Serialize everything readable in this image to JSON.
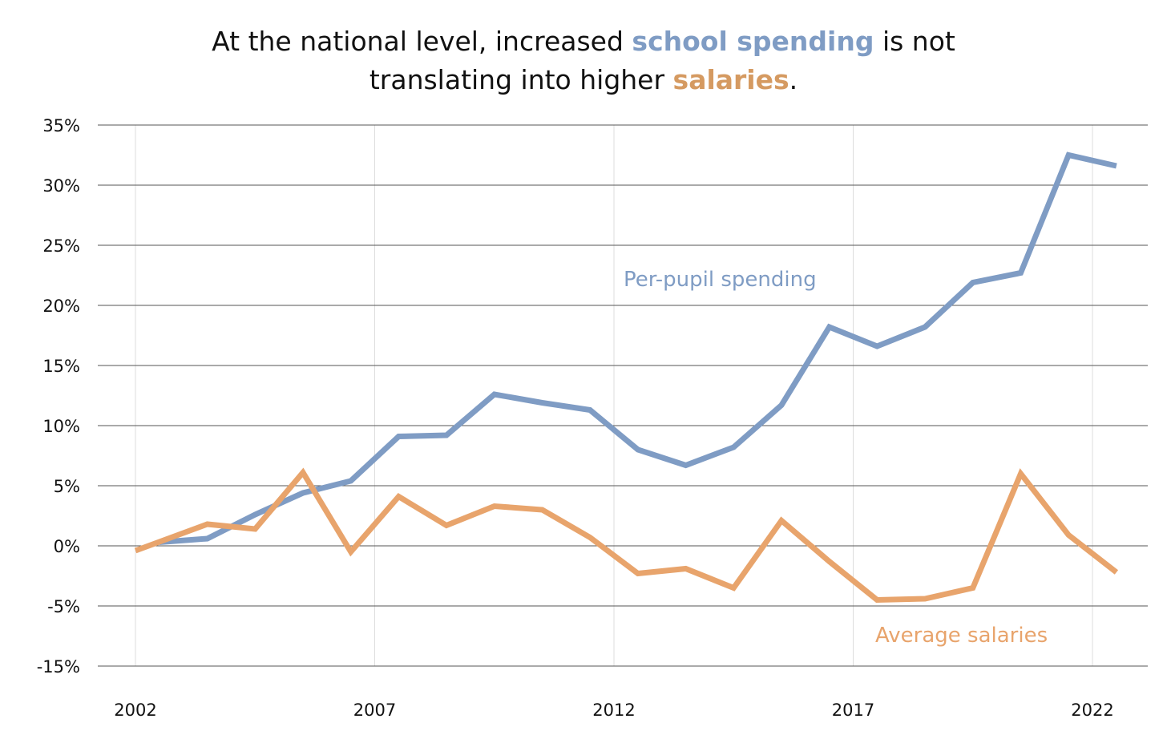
{
  "title": {
    "part1": "At the national level, increased ",
    "highlight1": "school spending",
    "part2": " is not",
    "part3": "translating into higher ",
    "highlight2": "salaries",
    "part4": "."
  },
  "colors": {
    "spending": "#7F9CC4",
    "salaries": "#E8A46C",
    "grid_major": "#555555",
    "grid_minor": "#DDDDDD",
    "title_spending": "#7F9CC4",
    "title_salaries": "#D59A61"
  },
  "chart_data": {
    "type": "line",
    "title": "At the national level, increased school spending is not translating into higher salaries.",
    "xlabel": "",
    "ylabel": "",
    "y_ticks": [
      35,
      30,
      25,
      20,
      15,
      10,
      5,
      0,
      -5,
      -15
    ],
    "y_tick_labels": [
      "35%",
      "30%",
      "25%",
      "20%",
      "15%",
      "10%",
      "5%",
      "0%",
      "-5%",
      "-15%"
    ],
    "x_ticks": [
      2002,
      2007,
      2012,
      2017,
      2022
    ],
    "x_tick_labels": [
      "2002",
      "2007",
      "2012",
      "2017",
      "2022"
    ],
    "grid": true,
    "series": [
      {
        "name": "Per-pupil spending",
        "color": "#7F9CC4",
        "x": [
          2002.5,
          2003.5,
          2004.5,
          2005.5,
          2006.5,
          2007.5,
          2008.5,
          2009.5,
          2010.5,
          2011.5,
          2012.5,
          2013.5,
          2014.5,
          2015.5,
          2016.5,
          2017.5,
          2018.5,
          2019.5,
          2020.5,
          2021.5,
          2022.5
        ],
        "values": [
          0.3,
          0.6,
          2.6,
          4.4,
          5.4,
          9.1,
          9.2,
          12.6,
          11.9,
          11.3,
          8.0,
          6.7,
          8.2,
          11.7,
          18.2,
          16.6,
          18.2,
          21.9,
          22.7,
          32.5,
          31.6
        ]
      },
      {
        "name": "Average salaries",
        "color": "#E8A46C",
        "x": [
          2002,
          2003.5,
          2004.5,
          2005.5,
          2006.5,
          2007.5,
          2008.5,
          2009.5,
          2010.5,
          2011.5,
          2012.5,
          2013.5,
          2014.5,
          2015.5,
          2016.5,
          2017.5,
          2018.5,
          2019.5,
          2020.5,
          2021.5,
          2022.5
        ],
        "values": [
          -0.4,
          1.8,
          1.4,
          6.1,
          -0.5,
          4.1,
          1.7,
          3.3,
          3.0,
          0.7,
          -2.3,
          -1.9,
          -3.5,
          2.1,
          -1.3,
          -4.5,
          -4.4,
          -3.5,
          6.0,
          0.9,
          -2.2
        ]
      }
    ]
  },
  "labels": {
    "spending": "Per-pupil spending",
    "salaries": "Average salaries"
  }
}
